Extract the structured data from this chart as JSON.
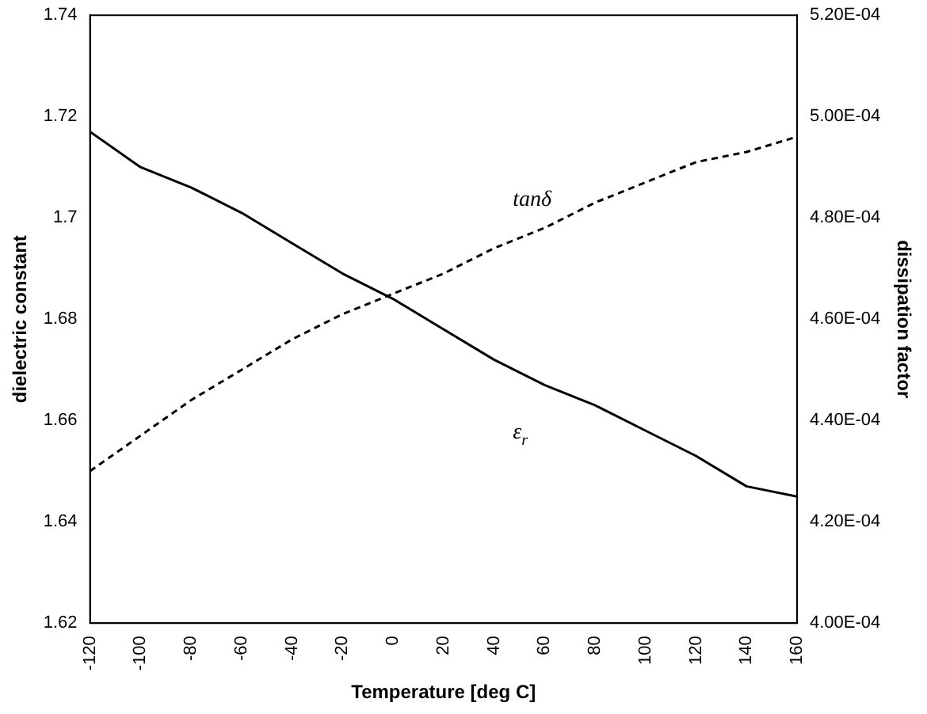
{
  "chart_data": {
    "type": "line",
    "xlabel": "Temperature [deg C]",
    "ylabel": "dielectric constant",
    "y2label": "dissipation factor",
    "x": [
      -120,
      -100,
      -80,
      -60,
      -40,
      -20,
      0,
      20,
      40,
      60,
      80,
      100,
      120,
      140,
      160
    ],
    "series": [
      {
        "name": "ε$_{r}$",
        "color": "#000000",
        "line_style": "solid",
        "values": [
          1.717,
          1.71,
          1.706,
          1.701,
          1.695,
          1.689,
          1.684,
          1.678,
          1.672,
          1.667,
          1.663,
          1.658,
          1.653,
          1.647,
          1.645
        ]
      },
      {
        "name": "tanδ",
        "color": "#000000",
        "line_style": "dashed",
        "axis": "y2",
        "values": [
          0.00043,
          0.000437,
          0.000444,
          0.00045,
          0.000456,
          0.000461,
          0.000465,
          0.000469,
          0.000474,
          0.000478,
          0.000483,
          0.000487,
          0.000491,
          0.000493,
          0.000496
        ]
      }
    ],
    "xlim": [
      -120,
      160
    ],
    "xticks": [
      -120,
      -100,
      -80,
      -60,
      -40,
      -20,
      0,
      20,
      40,
      60,
      80,
      100,
      120,
      140,
      160
    ],
    "ylim": [
      1.62,
      1.74
    ],
    "yticks": [
      1.62,
      1.64,
      1.66,
      1.68,
      1.7,
      1.72,
      1.74
    ],
    "y2lim": [
      0.0004,
      0.00052
    ],
    "y2ticks": [
      {
        "value": 0.0004,
        "label": "4.00E-04"
      },
      {
        "value": 0.00042,
        "label": "4.20E-04"
      },
      {
        "value": 0.00044,
        "label": "4.40E-04"
      },
      {
        "value": 0.00046,
        "label": "4.60E-04"
      },
      {
        "value": 0.00048,
        "label": "4.80E-04"
      },
      {
        "value": 0.0005,
        "label": "5.00E-04"
      },
      {
        "value": 0.00052,
        "label": "5.20E-04"
      }
    ],
    "grid": false,
    "legend": false,
    "marker": "none"
  }
}
